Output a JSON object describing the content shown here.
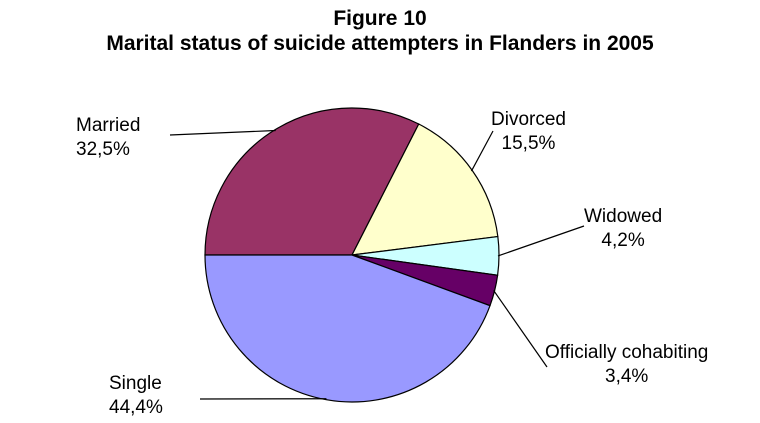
{
  "chart_data": {
    "type": "pie",
    "title": "Figure 10",
    "subtitle": "Marital status of suicide attempters in Flanders in 2005",
    "slices": [
      {
        "name": "Married",
        "value": 32.5,
        "label": "32,5%",
        "color": "#993366"
      },
      {
        "name": "Divorced",
        "value": 15.5,
        "label": "15,5%",
        "color": "#ffffcc"
      },
      {
        "name": "Widowed",
        "value": 4.2,
        "label": "4,2%",
        "color": "#ccffff"
      },
      {
        "name": "Officially cohabiting",
        "value": 3.4,
        "label": "3,4%",
        "color": "#660066"
      },
      {
        "name": "Single",
        "value": 44.4,
        "label": "44,4%",
        "color": "#9999ff"
      }
    ],
    "start_angle_deg": 180,
    "direction": "clockwise",
    "legend": "none"
  }
}
